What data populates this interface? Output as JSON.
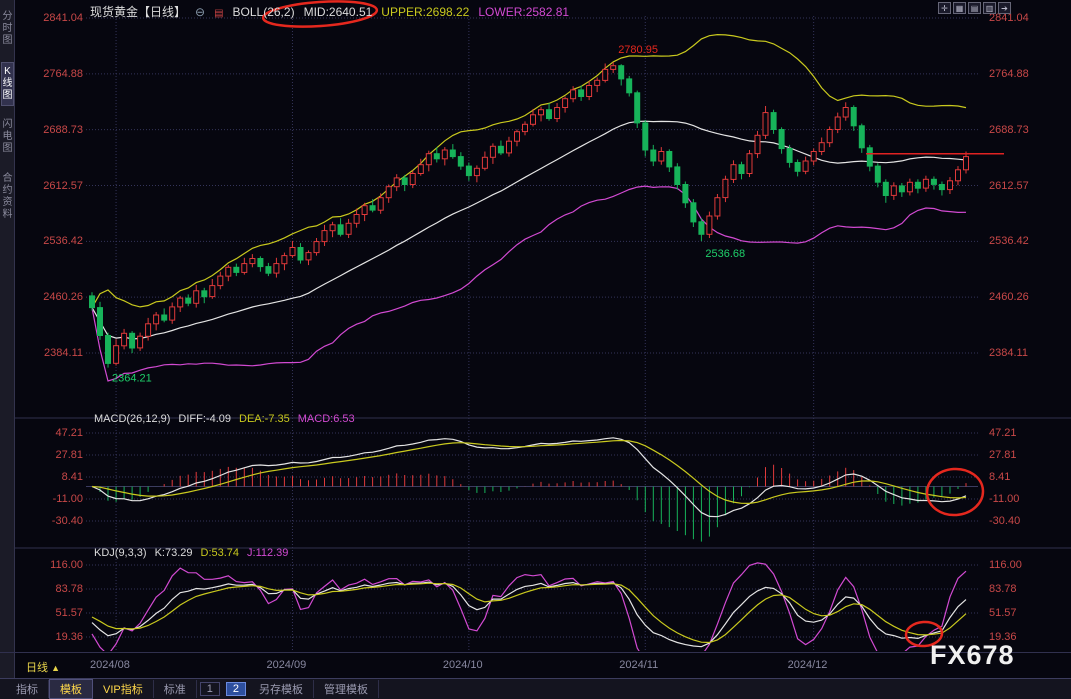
{
  "header": {
    "symbol": "现货黄金【日线】",
    "collapse_icon": "⊖",
    "indicator_icon": "▤",
    "boll_label": "BOLL(26,2)",
    "boll_mid": "MID:2640.51",
    "boll_upper": "UPPER:2698.22",
    "boll_lower": "LOWER:2582.81",
    "corner_icons": [
      "✛",
      "▦",
      "▤",
      "▥",
      "➔"
    ]
  },
  "sidebar": {
    "items": [
      {
        "label": "分时图",
        "active": false
      },
      {
        "label": "K线图",
        "active": true
      },
      {
        "label": "闪电图",
        "active": false
      },
      {
        "label": "合约资料",
        "active": false
      }
    ]
  },
  "price_axis": [
    "2841.04",
    "2764.88",
    "2688.73",
    "2612.57",
    "2536.42",
    "2460.26",
    "2384.11"
  ],
  "macd_panel": {
    "title": "MACD(26,12,9)",
    "diff": "DIFF:-4.09",
    "dea": "DEA:-7.35",
    "macd": "MACD:6.53",
    "axis": [
      "47.21",
      "27.81",
      "8.41",
      "-11.00",
      "-30.40"
    ]
  },
  "kdj_panel": {
    "title": "KDJ(9,3,3)",
    "k": "K:73.29",
    "d": "D:53.74",
    "j": "J:112.39",
    "axis": [
      "116.00",
      "83.78",
      "51.57",
      "19.36"
    ]
  },
  "time_axis": {
    "period": "日线",
    "arrow": "▲",
    "dates": [
      "2024/08",
      "2024/09",
      "2024/10",
      "2024/11",
      "2024/12"
    ]
  },
  "toolbar": {
    "items": [
      {
        "label": "指标",
        "style": ""
      },
      {
        "label": "模板",
        "style": "tab-active"
      },
      {
        "label": "VIP指标",
        "style": "vip"
      },
      {
        "label": "标准",
        "style": ""
      },
      {
        "label": "1",
        "style": "page"
      },
      {
        "label": "2",
        "style": "page-active"
      },
      {
        "label": "另存模板",
        "style": ""
      },
      {
        "label": "管理模板",
        "style": ""
      }
    ]
  },
  "watermark": "FX678",
  "annotations": {
    "peak": "2780.95",
    "trough1": "2536.68",
    "trough2": "2364.21",
    "trendline_price": 2656,
    "circled": [
      "BOLL MID value",
      "MACD latest golden cross",
      "KDJ latest golden cross"
    ]
  },
  "colors": {
    "background": "#06060f",
    "up": "#e03a3a",
    "down": "#17b35a",
    "boll_mid": "#e4e4e4",
    "boll_upper": "#c9c91e",
    "boll_lower": "#d24ad2",
    "axis_text": "#c84848",
    "grid": "#34345a",
    "annotation_red": "#e5281e",
    "annotation_green": "#1fcf6a",
    "highlight_line": "#e02222",
    "diff_line": "#e4e4e4",
    "dea_line": "#c9c91e",
    "macd_hist_pos": "#e03a3a",
    "macd_hist_neg": "#17b35a",
    "k_line": "#e4e4e4",
    "d_line": "#c9c91e",
    "j_line": "#d24ad2"
  },
  "chart_data": {
    "type": "candlestick",
    "title": "现货黄金 日线 (Spot Gold Daily)",
    "ylim": [
      2384.11,
      2841.04
    ],
    "x_dates": [
      "2024/08",
      "2024/09",
      "2024/10",
      "2024/11",
      "2024/12"
    ],
    "month_start_indices": [
      3,
      25,
      47,
      69,
      90
    ],
    "key_points": {
      "high": 2780.95,
      "low_nov": 2536.68,
      "low_aug": 2364.21
    },
    "indicators": {
      "boll": {
        "period": 26,
        "width": 2,
        "mid": 2640.51,
        "upper": 2698.22,
        "lower": 2582.81
      },
      "macd": {
        "params": [
          26,
          12,
          9
        ],
        "diff": -4.09,
        "dea": -7.35,
        "macd": 6.53,
        "axis_range": [
          -30.4,
          47.21
        ]
      },
      "kdj": {
        "params": [
          9,
          3,
          3
        ],
        "k": 73.29,
        "d": 53.74,
        "j": 112.39,
        "axis_range": [
          19.36,
          116.0
        ]
      }
    },
    "candles": [
      [
        2462,
        2467,
        2442,
        2446
      ],
      [
        2446,
        2454,
        2402,
        2408
      ],
      [
        2408,
        2412,
        2364.21,
        2370
      ],
      [
        2370,
        2403,
        2367,
        2394
      ],
      [
        2394,
        2417,
        2389,
        2411
      ],
      [
        2411,
        2414,
        2384,
        2391
      ],
      [
        2391,
        2412,
        2387,
        2407
      ],
      [
        2407,
        2432,
        2401,
        2424
      ],
      [
        2424,
        2440,
        2415,
        2436
      ],
      [
        2436,
        2445,
        2426,
        2429
      ],
      [
        2429,
        2453,
        2424,
        2447
      ],
      [
        2447,
        2462,
        2440,
        2459
      ],
      [
        2459,
        2464,
        2448,
        2452
      ],
      [
        2452,
        2477,
        2446,
        2469
      ],
      [
        2469,
        2473,
        2452,
        2461
      ],
      [
        2461,
        2485,
        2458,
        2476
      ],
      [
        2476,
        2495,
        2471,
        2489
      ],
      [
        2489,
        2504,
        2482,
        2501
      ],
      [
        2501,
        2506,
        2489,
        2494
      ],
      [
        2494,
        2514,
        2491,
        2506
      ],
      [
        2506,
        2519,
        2501,
        2513
      ],
      [
        2513,
        2516,
        2495,
        2502
      ],
      [
        2502,
        2507,
        2489,
        2493
      ],
      [
        2493,
        2514,
        2487,
        2506
      ],
      [
        2506,
        2521,
        2497,
        2517
      ],
      [
        2517,
        2537,
        2514,
        2528
      ],
      [
        2528,
        2534,
        2506,
        2511
      ],
      [
        2511,
        2524,
        2504,
        2521
      ],
      [
        2521,
        2541,
        2517,
        2536
      ],
      [
        2536,
        2559,
        2530,
        2551
      ],
      [
        2551,
        2563,
        2542,
        2559
      ],
      [
        2559,
        2568,
        2543,
        2546
      ],
      [
        2546,
        2567,
        2541,
        2561
      ],
      [
        2561,
        2581,
        2555,
        2573
      ],
      [
        2573,
        2589,
        2564,
        2585
      ],
      [
        2585,
        2594,
        2576,
        2579
      ],
      [
        2579,
        2602,
        2574,
        2596
      ],
      [
        2596,
        2614,
        2589,
        2611
      ],
      [
        2611,
        2628,
        2605,
        2623
      ],
      [
        2623,
        2627,
        2605,
        2614
      ],
      [
        2614,
        2633,
        2609,
        2629
      ],
      [
        2629,
        2649,
        2626,
        2641
      ],
      [
        2641,
        2660,
        2632,
        2656
      ],
      [
        2656,
        2665,
        2644,
        2649
      ],
      [
        2649,
        2665,
        2640,
        2661
      ],
      [
        2661,
        2669,
        2649,
        2652
      ],
      [
        2652,
        2658,
        2634,
        2639
      ],
      [
        2639,
        2644,
        2619,
        2626
      ],
      [
        2626,
        2640,
        2617,
        2636
      ],
      [
        2636,
        2659,
        2633,
        2651
      ],
      [
        2651,
        2670,
        2642,
        2666
      ],
      [
        2666,
        2674,
        2654,
        2657
      ],
      [
        2657,
        2679,
        2652,
        2673
      ],
      [
        2673,
        2689,
        2666,
        2686
      ],
      [
        2686,
        2700,
        2681,
        2696
      ],
      [
        2696,
        2717,
        2693,
        2709
      ],
      [
        2709,
        2720,
        2700,
        2716
      ],
      [
        2716,
        2725,
        2701,
        2704
      ],
      [
        2704,
        2725,
        2699,
        2719
      ],
      [
        2719,
        2734,
        2712,
        2731
      ],
      [
        2731,
        2748,
        2726,
        2743
      ],
      [
        2743,
        2749,
        2728,
        2734
      ],
      [
        2734,
        2755,
        2729,
        2749
      ],
      [
        2749,
        2760,
        2740,
        2756
      ],
      [
        2756,
        2779,
        2753,
        2771
      ],
      [
        2771,
        2780.95,
        2766,
        2776
      ],
      [
        2776,
        2778,
        2749,
        2758
      ],
      [
        2758,
        2762,
        2734,
        2739
      ],
      [
        2739,
        2742,
        2691,
        2698
      ],
      [
        2698,
        2702,
        2652,
        2661
      ],
      [
        2661,
        2668,
        2639,
        2646
      ],
      [
        2646,
        2665,
        2641,
        2659
      ],
      [
        2659,
        2662,
        2631,
        2638
      ],
      [
        2638,
        2643,
        2607,
        2614
      ],
      [
        2614,
        2618,
        2582,
        2589
      ],
      [
        2589,
        2594,
        2556,
        2563
      ],
      [
        2563,
        2568,
        2536.68,
        2546
      ],
      [
        2546,
        2577,
        2541,
        2571
      ],
      [
        2571,
        2601,
        2566,
        2596
      ],
      [
        2596,
        2626,
        2590,
        2621
      ],
      [
        2621,
        2647,
        2616,
        2641
      ],
      [
        2641,
        2645,
        2621,
        2629
      ],
      [
        2629,
        2661,
        2624,
        2656
      ],
      [
        2656,
        2687,
        2650,
        2681
      ],
      [
        2681,
        2721,
        2676,
        2712
      ],
      [
        2712,
        2716,
        2683,
        2689
      ],
      [
        2689,
        2692,
        2656,
        2663
      ],
      [
        2663,
        2668,
        2637,
        2644
      ],
      [
        2644,
        2648,
        2625,
        2632
      ],
      [
        2632,
        2652,
        2628,
        2646
      ],
      [
        2646,
        2663,
        2640,
        2659
      ],
      [
        2659,
        2678,
        2654,
        2671
      ],
      [
        2671,
        2693,
        2665,
        2689
      ],
      [
        2689,
        2712,
        2684,
        2706
      ],
      [
        2706,
        2726,
        2701,
        2719
      ],
      [
        2719,
        2722,
        2687,
        2694
      ],
      [
        2694,
        2697,
        2657,
        2664
      ],
      [
        2664,
        2668,
        2632,
        2639
      ],
      [
        2639,
        2643,
        2610,
        2617
      ],
      [
        2617,
        2621,
        2589,
        2599
      ],
      [
        2599,
        2617,
        2593,
        2612
      ],
      [
        2612,
        2616,
        2597,
        2604
      ],
      [
        2604,
        2622,
        2599,
        2617
      ],
      [
        2617,
        2621,
        2602,
        2609
      ],
      [
        2609,
        2626,
        2604,
        2621
      ],
      [
        2621,
        2625,
        2607,
        2614
      ],
      [
        2614,
        2618,
        2599,
        2607
      ],
      [
        2607,
        2624,
        2601,
        2619
      ],
      [
        2619,
        2639,
        2613,
        2634
      ],
      [
        2634,
        2659,
        2629,
        2652
      ]
    ]
  }
}
